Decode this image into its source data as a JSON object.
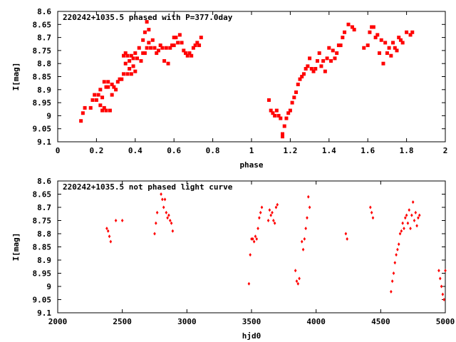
{
  "chart_data": [
    {
      "type": "scatter",
      "title": "220242+1035.5 phased with P=377.0day",
      "xlabel": "phase",
      "ylabel": "I[mag]",
      "xlim": [
        0,
        2
      ],
      "ylim": [
        8.6,
        9.1
      ],
      "y_inverted": true,
      "xticks": [
        0,
        0.2,
        0.4,
        0.6,
        0.8,
        1,
        1.2,
        1.4,
        1.6,
        1.8,
        2
      ],
      "yticks": [
        8.6,
        8.65,
        8.7,
        8.75,
        8.8,
        8.85,
        8.9,
        8.95,
        9,
        9.05,
        9.1
      ],
      "marker": "filled-square",
      "color": "#ff0000",
      "grid": false,
      "x": [
        0.12,
        0.13,
        0.14,
        0.17,
        0.18,
        0.19,
        0.2,
        0.21,
        0.22,
        0.22,
        0.23,
        0.23,
        0.24,
        0.24,
        0.25,
        0.25,
        0.26,
        0.26,
        0.27,
        0.28,
        0.28,
        0.29,
        0.3,
        0.31,
        0.32,
        0.33,
        0.34,
        0.34,
        0.35,
        0.35,
        0.36,
        0.36,
        0.37,
        0.37,
        0.38,
        0.38,
        0.39,
        0.39,
        0.4,
        0.4,
        0.41,
        0.42,
        0.43,
        0.44,
        0.44,
        0.45,
        0.45,
        0.46,
        0.46,
        0.47,
        0.47,
        0.48,
        0.49,
        0.5,
        0.51,
        0.52,
        0.53,
        0.54,
        0.55,
        0.56,
        0.57,
        0.58,
        0.59,
        0.6,
        0.6,
        0.61,
        0.62,
        0.63,
        0.64,
        0.65,
        0.66,
        0.67,
        0.68,
        0.69,
        0.7,
        0.71,
        0.72,
        0.73,
        0.74,
        1.09,
        1.1,
        1.11,
        1.12,
        1.13,
        1.14,
        1.15,
        1.16,
        1.16,
        1.17,
        1.18,
        1.19,
        1.2,
        1.21,
        1.22,
        1.23,
        1.24,
        1.25,
        1.26,
        1.27,
        1.28,
        1.29,
        1.3,
        1.31,
        1.32,
        1.33,
        1.34,
        1.35,
        1.36,
        1.37,
        1.38,
        1.39,
        1.4,
        1.41,
        1.42,
        1.43,
        1.44,
        1.45,
        1.46,
        1.47,
        1.48,
        1.5,
        1.52,
        1.53,
        1.58,
        1.6,
        1.61,
        1.62,
        1.63,
        1.64,
        1.65,
        1.66,
        1.67,
        1.68,
        1.69,
        1.7,
        1.71,
        1.72,
        1.73,
        1.74,
        1.75,
        1.76,
        1.77,
        1.78,
        1.8,
        1.82,
        1.83
      ],
      "y": [
        9.02,
        8.99,
        8.97,
        8.97,
        8.94,
        8.92,
        8.94,
        8.92,
        8.96,
        8.9,
        8.98,
        8.93,
        8.87,
        8.97,
        8.89,
        8.98,
        8.89,
        8.87,
        8.98,
        8.88,
        8.92,
        8.89,
        8.9,
        8.87,
        8.86,
        8.86,
        8.84,
        8.77,
        8.8,
        8.76,
        8.84,
        8.77,
        8.82,
        8.79,
        8.84,
        8.77,
        8.81,
        8.78,
        8.83,
        8.76,
        8.78,
        8.74,
        8.79,
        8.71,
        8.76,
        8.68,
        8.76,
        8.64,
        8.74,
        8.67,
        8.72,
        8.74,
        8.71,
        8.74,
        8.76,
        8.75,
        8.73,
        8.74,
        8.79,
        8.74,
        8.8,
        8.74,
        8.73,
        8.7,
        8.73,
        8.7,
        8.72,
        8.69,
        8.72,
        8.75,
        8.76,
        8.77,
        8.76,
        8.77,
        8.74,
        8.73,
        8.72,
        8.73,
        8.7,
        8.94,
        8.98,
        8.99,
        9,
        8.98,
        9,
        9.01,
        9.07,
        9.08,
        9.04,
        9.01,
        8.99,
        8.98,
        8.95,
        8.93,
        8.91,
        8.88,
        8.86,
        8.85,
        8.84,
        8.82,
        8.81,
        8.78,
        8.82,
        8.83,
        8.82,
        8.79,
        8.76,
        8.81,
        8.79,
        8.83,
        8.78,
        8.74,
        8.79,
        8.75,
        8.78,
        8.76,
        8.73,
        8.73,
        8.7,
        8.68,
        8.65,
        8.66,
        8.67,
        8.74,
        8.73,
        8.68,
        8.66,
        8.66,
        8.7,
        8.69,
        8.76,
        8.71,
        8.8,
        8.72,
        8.76,
        8.74,
        8.77,
        8.72,
        8.74,
        8.75,
        8.7,
        8.71,
        8.72,
        8.68,
        8.69,
        8.68
      ],
      "x_values_estimated": true
    },
    {
      "type": "scatter",
      "title": "220242+1035.5 not phased light curve",
      "xlabel": "hjd0",
      "ylabel": "I[mag]",
      "xlim": [
        2000,
        5000
      ],
      "ylim": [
        8.6,
        9.1
      ],
      "y_inverted": true,
      "xticks": [
        2000,
        2500,
        3000,
        3500,
        4000,
        4500,
        5000
      ],
      "yticks": [
        8.6,
        8.65,
        8.7,
        8.75,
        8.8,
        8.85,
        8.9,
        8.95,
        9,
        9.05,
        9.1
      ],
      "marker": "filled-diamond",
      "color": "#ff0000",
      "grid": false,
      "x": [
        2380,
        2390,
        2400,
        2410,
        2450,
        2500,
        2750,
        2760,
        2770,
        2800,
        2810,
        2820,
        2830,
        2840,
        2850,
        2860,
        2870,
        2880,
        2890,
        3480,
        3490,
        3500,
        3510,
        3520,
        3530,
        3540,
        3550,
        3560,
        3570,
        3580,
        3630,
        3640,
        3650,
        3660,
        3670,
        3680,
        3690,
        3700,
        3840,
        3850,
        3860,
        3870,
        3890,
        3900,
        3910,
        3920,
        3930,
        3940,
        3950,
        4230,
        4240,
        4420,
        4430,
        4440,
        4580,
        4590,
        4600,
        4610,
        4620,
        4630,
        4640,
        4650,
        4660,
        4670,
        4680,
        4690,
        4700,
        4710,
        4720,
        4730,
        4740,
        4750,
        4760,
        4770,
        4780,
        4790,
        4800,
        4950,
        4960,
        4970,
        4980,
        4990,
        5000
      ],
      "y": [
        8.78,
        8.79,
        8.81,
        8.83,
        8.75,
        8.75,
        8.8,
        8.76,
        8.72,
        8.65,
        8.67,
        8.7,
        8.67,
        8.72,
        8.74,
        8.73,
        8.75,
        8.76,
        8.79,
        8.99,
        8.88,
        8.82,
        8.82,
        8.83,
        8.81,
        8.82,
        8.78,
        8.74,
        8.72,
        8.7,
        8.75,
        8.71,
        8.73,
        8.72,
        8.75,
        8.76,
        8.7,
        8.69,
        8.94,
        8.98,
        8.99,
        8.97,
        8.83,
        8.86,
        8.82,
        8.78,
        8.74,
        8.66,
        8.7,
        8.8,
        8.82,
        8.7,
        8.72,
        8.74,
        9.02,
        8.98,
        8.95,
        8.91,
        8.88,
        8.86,
        8.84,
        8.8,
        8.79,
        8.76,
        8.78,
        8.74,
        8.73,
        8.76,
        8.71,
        8.78,
        8.73,
        8.68,
        8.75,
        8.72,
        8.77,
        8.74,
        8.73,
        8.94,
        8.97,
        9,
        9.03,
        9.05,
        8.94
      ],
      "x_values_estimated": true
    }
  ]
}
